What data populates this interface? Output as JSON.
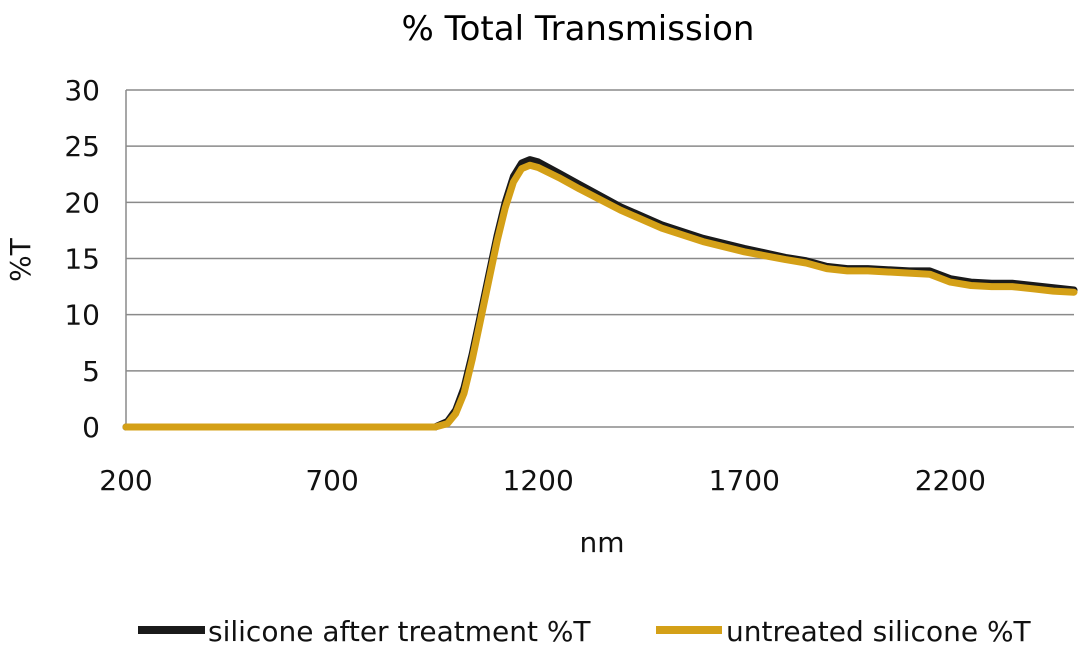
{
  "chart_data": {
    "type": "line",
    "title": "% Total Transmission",
    "xlabel": "nm",
    "ylabel": "%T",
    "xlim": [
      200,
      2500
    ],
    "ylim": [
      0,
      30
    ],
    "x_ticks": [
      200,
      700,
      1200,
      1700,
      2200
    ],
    "y_ticks": [
      0,
      5,
      10,
      15,
      20,
      25,
      30
    ],
    "grid": "horizontal",
    "legend": "bottom",
    "series": [
      {
        "name": "silicone after treatment %T",
        "color": "#1a1a1a",
        "x": [
          200,
          400,
          600,
          800,
          950,
          980,
          1000,
          1020,
          1040,
          1060,
          1080,
          1100,
          1120,
          1140,
          1160,
          1180,
          1200,
          1250,
          1300,
          1400,
          1500,
          1600,
          1700,
          1800,
          1850,
          1900,
          1950,
          2000,
          2100,
          2150,
          2200,
          2250,
          2300,
          2350,
          2400,
          2450,
          2500
        ],
        "y": [
          0,
          0,
          0,
          0,
          0,
          0.5,
          1.5,
          3.5,
          6.5,
          10,
          13.5,
          17,
          20,
          22.3,
          23.5,
          23.8,
          23.6,
          22.6,
          21.6,
          19.6,
          18.0,
          16.8,
          15.9,
          15.1,
          14.8,
          14.3,
          14.1,
          14.1,
          13.9,
          13.9,
          13.2,
          12.9,
          12.8,
          12.8,
          12.6,
          12.4,
          12.2
        ]
      },
      {
        "name": "untreated silicone %T",
        "color": "#d4a017",
        "x": [
          200,
          400,
          600,
          800,
          950,
          980,
          1000,
          1020,
          1040,
          1060,
          1080,
          1100,
          1120,
          1140,
          1160,
          1180,
          1200,
          1250,
          1300,
          1400,
          1500,
          1600,
          1700,
          1800,
          1850,
          1900,
          1950,
          2000,
          2100,
          2150,
          2200,
          2250,
          2300,
          2350,
          2400,
          2450,
          2500
        ],
        "y": [
          0,
          0,
          0,
          0,
          0,
          0.3,
          1.2,
          3.0,
          6.0,
          9.5,
          13.0,
          16.5,
          19.5,
          21.8,
          23.0,
          23.3,
          23.1,
          22.2,
          21.2,
          19.3,
          17.7,
          16.5,
          15.6,
          14.9,
          14.6,
          14.1,
          13.9,
          13.9,
          13.7,
          13.6,
          12.9,
          12.6,
          12.5,
          12.5,
          12.3,
          12.1,
          12.0
        ]
      }
    ]
  }
}
